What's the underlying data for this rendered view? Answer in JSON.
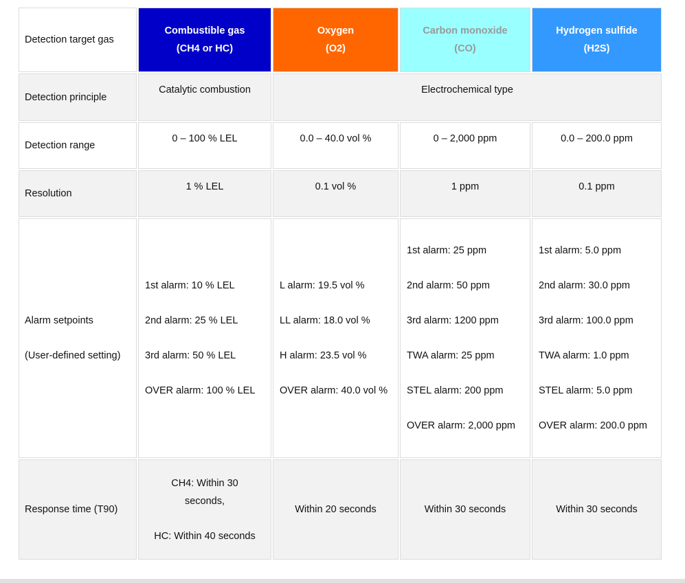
{
  "colors": {
    "combustible": "#0000c8",
    "oxygen": "#ff6600",
    "co": "#99ffff",
    "h2s": "#3399ff",
    "co_text": "#999999"
  },
  "header": {
    "label": "Detection target gas",
    "gases": [
      {
        "name": "Combustible gas",
        "formula": "(CH4 or HC)"
      },
      {
        "name": "Oxygen",
        "formula": "(O2)"
      },
      {
        "name": "Carbon monoxide",
        "formula": "(CO)"
      },
      {
        "name": "Hydrogen sulfide",
        "formula": "(H2S)"
      }
    ]
  },
  "principle": {
    "label": "Detection principle",
    "values": [
      "Catalytic combustion",
      "Electrochemical type"
    ]
  },
  "range": {
    "label": "Detection range",
    "values": [
      "0 – 100 % LEL",
      "0.0 – 40.0 vol %",
      "0 – 2,000 ppm",
      "0.0 – 200.0 ppm"
    ]
  },
  "resolution": {
    "label": "Resolution",
    "values": [
      "1 % LEL",
      "0.1 vol %",
      "1 ppm",
      "0.1 ppm"
    ]
  },
  "alarm": {
    "label": "Alarm setpoints",
    "sublabel": "(User-defined setting)",
    "values": [
      [
        "1st alarm: 10 % LEL",
        "2nd alarm: 25 % LEL",
        "3rd alarm: 50 % LEL",
        "OVER alarm: 100 % LEL"
      ],
      [
        "L alarm: 19.5 vol %",
        "LL alarm: 18.0 vol %",
        "H alarm: 23.5 vol %",
        "OVER alarm: 40.0 vol %"
      ],
      [
        "1st alarm: 25 ppm",
        "2nd alarm: 50 ppm",
        "3rd alarm: 1200 ppm",
        "TWA alarm: 25 ppm",
        "STEL alarm: 200 ppm",
        "OVER alarm: 2,000 ppm"
      ],
      [
        "1st alarm: 5.0 ppm",
        "2nd alarm: 30.0 ppm",
        "3rd alarm: 100.0 ppm",
        "TWA alarm: 1.0 ppm",
        "STEL alarm: 5.0 ppm",
        "OVER alarm: 200.0 ppm"
      ]
    ]
  },
  "response": {
    "label": "Response time (T90)",
    "combustible": [
      "CH4: Within 30 seconds,",
      "HC: Within 40 seconds"
    ],
    "values": [
      "Within 20 seconds",
      "Within 30 seconds",
      "Within 30 seconds"
    ]
  }
}
